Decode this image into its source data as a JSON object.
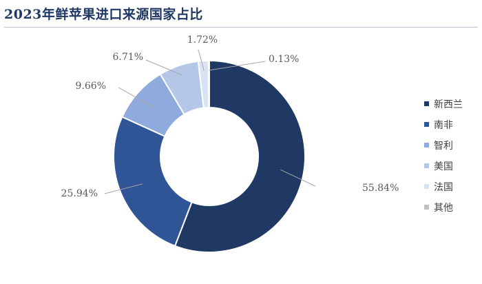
{
  "chart_data": {
    "type": "pie",
    "title": "2023年鲜苹果进口来源国家占比",
    "categories": [
      "新西兰",
      "南非",
      "智利",
      "美国",
      "法国",
      "其他"
    ],
    "values": [
      55.84,
      25.94,
      9.66,
      6.71,
      1.72,
      0.13
    ],
    "labels": [
      "55.84%",
      "25.94%",
      "9.66%",
      "6.71%",
      "1.72%",
      "0.13%"
    ],
    "colors": [
      "#1f3864",
      "#2f5597",
      "#8faadc",
      "#b4c7e7",
      "#dae3f3",
      "#bfbfbf"
    ],
    "donut": true,
    "legend_position": "right"
  }
}
